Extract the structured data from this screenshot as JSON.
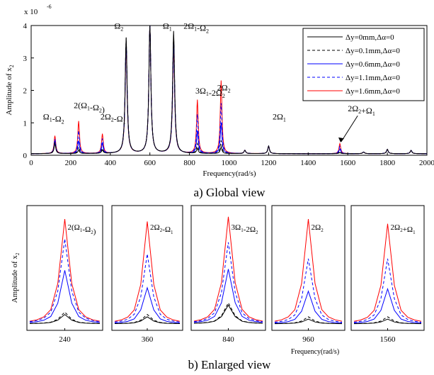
{
  "chart_data": [
    {
      "type": "line",
      "title": "",
      "caption": "a) Global view",
      "xlabel": "Frequency(rad/s)",
      "ylabel": "Amplitude of x",
      "ylabel_subscript": "2",
      "ymultiplier": "x 10",
      "ymultiplier_exp": "-6",
      "xlim": [
        0,
        2000
      ],
      "ylim": [
        0,
        4
      ],
      "xticks": [
        "0",
        "200",
        "400",
        "600",
        "800",
        "1000",
        "1200",
        "1400",
        "1600",
        "1800",
        "2000"
      ],
      "yticks": [
        "0",
        "1",
        "2",
        "3",
        "4"
      ],
      "grid": false,
      "legend_position": "top-right",
      "series": [
        {
          "name": "Δy=0mm,Δα=0",
          "color": "#000000",
          "dash": "solid"
        },
        {
          "name": "Δy=0.1mm,Δα=0",
          "color": "#000000",
          "dash": "dashed"
        },
        {
          "name": "Δy=0.6mm,Δα=0",
          "color": "#0000ff",
          "dash": "solid"
        },
        {
          "name": "Δy=1.1mm,Δα=0",
          "color": "#0000ff",
          "dash": "dashed"
        },
        {
          "name": "Δy=1.6mm,Δα=0",
          "color": "#ff0000",
          "dash": "solid"
        }
      ],
      "peaks": [
        {
          "x": 120,
          "heights": [
            0.35,
            0.4,
            0.45,
            0.5,
            0.6
          ]
        },
        {
          "x": 240,
          "heights": [
            0.15,
            0.25,
            0.45,
            0.75,
            1.05
          ]
        },
        {
          "x": 360,
          "heights": [
            0.15,
            0.2,
            0.35,
            0.5,
            0.65
          ]
        },
        {
          "x": 480,
          "heights": [
            3.62,
            3.6,
            3.5,
            3.4,
            3.3
          ]
        },
        {
          "x": 600,
          "heights": [
            4.0,
            4.0,
            4.0,
            4.0,
            4.0
          ]
        },
        {
          "x": 720,
          "heights": [
            3.82,
            3.7,
            3.55,
            3.4,
            3.3
          ]
        },
        {
          "x": 840,
          "heights": [
            0.2,
            0.35,
            0.75,
            1.25,
            1.7
          ]
        },
        {
          "x": 960,
          "heights": [
            0.25,
            0.45,
            1.0,
            1.6,
            2.3
          ]
        },
        {
          "x": 1080,
          "heights": [
            0.15,
            0.15,
            0.15,
            0.15,
            0.15
          ]
        },
        {
          "x": 1200,
          "heights": [
            0.28,
            0.28,
            0.28,
            0.28,
            0.28
          ]
        },
        {
          "x": 1560,
          "heights": [
            0.08,
            0.12,
            0.2,
            0.28,
            0.36
          ]
        },
        {
          "x": 1680,
          "heights": [
            0.1,
            0.1,
            0.1,
            0.1,
            0.1
          ]
        },
        {
          "x": 1800,
          "heights": [
            0.18,
            0.18,
            0.18,
            0.18,
            0.18
          ]
        },
        {
          "x": 1920,
          "heights": [
            0.15,
            0.15,
            0.15,
            0.15,
            0.15
          ]
        }
      ],
      "baseline": 0.05,
      "annotations": [
        {
          "text": "Ω1-Ω2",
          "x": 60,
          "y": 1.1
        },
        {
          "text": "2(Ω1-Ω2)",
          "x": 215,
          "y": 1.45
        },
        {
          "text": "2Ω2-Ω1",
          "x": 350,
          "y": 1.1
        },
        {
          "text": "Ω2",
          "x": 420,
          "y": 3.9
        },
        {
          "text": "Ω1",
          "x": 665,
          "y": 3.9
        },
        {
          "text": "2Ω1-Ω2",
          "x": 770,
          "y": 3.9
        },
        {
          "text": "3Ω1-2Ω2",
          "x": 830,
          "y": 1.9
        },
        {
          "text": "2Ω2",
          "x": 940,
          "y": 2.0
        },
        {
          "text": "2Ω1",
          "x": 1220,
          "y": 1.1
        },
        {
          "text": "2Ω2+Ω1",
          "x": 1600,
          "y": 1.35
        }
      ]
    },
    {
      "type": "line",
      "caption": "b) Enlarged view",
      "xlabel": "Frequency(rad/s)",
      "ylabel": "Amplitude of x",
      "ylabel_subscript": "2",
      "panels": [
        {
          "tick": "240",
          "label": "2(Ω1-Ω2)",
          "heights": [
            0.1,
            0.12,
            0.48,
            0.75,
            0.92
          ]
        },
        {
          "tick": "360",
          "label": "2Ω2-Ω1",
          "heights": [
            0.08,
            0.1,
            0.33,
            0.62,
            0.9
          ]
        },
        {
          "tick": "840",
          "label": "3Ω1-2Ω2",
          "heights": [
            0.18,
            0.2,
            0.49,
            0.72,
            0.94
          ]
        },
        {
          "tick": "960",
          "label": "2Ω2",
          "heights": [
            0.06,
            0.08,
            0.3,
            0.58,
            0.92
          ]
        },
        {
          "tick": "1560",
          "label": "2Ω2+Ω1",
          "heights": [
            0.06,
            0.08,
            0.32,
            0.58,
            0.88
          ]
        }
      ]
    }
  ]
}
